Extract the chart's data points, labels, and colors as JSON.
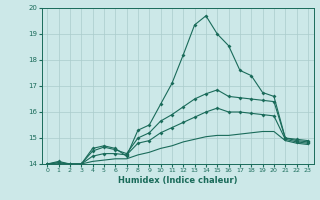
{
  "xlabel": "Humidex (Indice chaleur)",
  "ylabel": "",
  "background_color": "#cce8e8",
  "grid_color": "#aacccc",
  "line_color": "#1a6b5a",
  "xlim": [
    -0.5,
    23.5
  ],
  "ylim": [
    14,
    20
  ],
  "yticks": [
    14,
    15,
    16,
    17,
    18,
    19,
    20
  ],
  "xticks": [
    0,
    1,
    2,
    3,
    4,
    5,
    6,
    7,
    8,
    9,
    10,
    11,
    12,
    13,
    14,
    15,
    16,
    17,
    18,
    19,
    20,
    21,
    22,
    23
  ],
  "line1_x": [
    0,
    1,
    2,
    3,
    4,
    5,
    6,
    7,
    8,
    9,
    10,
    11,
    12,
    13,
    14,
    15,
    16,
    17,
    18,
    19,
    20,
    21,
    22,
    23
  ],
  "line1_y": [
    14.0,
    14.1,
    14.0,
    14.0,
    14.6,
    14.7,
    14.6,
    14.3,
    15.3,
    15.5,
    16.3,
    17.1,
    18.2,
    19.35,
    19.7,
    19.0,
    18.55,
    17.6,
    17.4,
    16.75,
    16.6,
    15.0,
    14.95,
    14.9
  ],
  "line2_x": [
    0,
    1,
    2,
    3,
    4,
    5,
    6,
    7,
    8,
    9,
    10,
    11,
    12,
    13,
    14,
    15,
    16,
    17,
    18,
    19,
    20,
    21,
    22,
    23
  ],
  "line2_y": [
    14.0,
    14.05,
    14.0,
    14.0,
    14.5,
    14.65,
    14.55,
    14.4,
    15.0,
    15.2,
    15.65,
    15.9,
    16.2,
    16.5,
    16.7,
    16.85,
    16.6,
    16.55,
    16.5,
    16.45,
    16.4,
    15.0,
    14.9,
    14.85
  ],
  "line3_x": [
    0,
    1,
    2,
    3,
    4,
    5,
    6,
    7,
    8,
    9,
    10,
    11,
    12,
    13,
    14,
    15,
    16,
    17,
    18,
    19,
    20,
    21,
    22,
    23
  ],
  "line3_y": [
    14.0,
    14.05,
    14.0,
    14.0,
    14.3,
    14.4,
    14.4,
    14.35,
    14.8,
    14.9,
    15.2,
    15.4,
    15.6,
    15.8,
    16.0,
    16.15,
    16.0,
    16.0,
    15.95,
    15.9,
    15.85,
    14.95,
    14.85,
    14.8
  ],
  "line4_x": [
    0,
    1,
    2,
    3,
    4,
    5,
    6,
    7,
    8,
    9,
    10,
    11,
    12,
    13,
    14,
    15,
    16,
    17,
    18,
    19,
    20,
    21,
    22,
    23
  ],
  "line4_y": [
    14.0,
    14.0,
    14.0,
    14.0,
    14.1,
    14.15,
    14.2,
    14.2,
    14.35,
    14.45,
    14.6,
    14.7,
    14.85,
    14.95,
    15.05,
    15.1,
    15.1,
    15.15,
    15.2,
    15.25,
    15.25,
    14.9,
    14.8,
    14.75
  ]
}
